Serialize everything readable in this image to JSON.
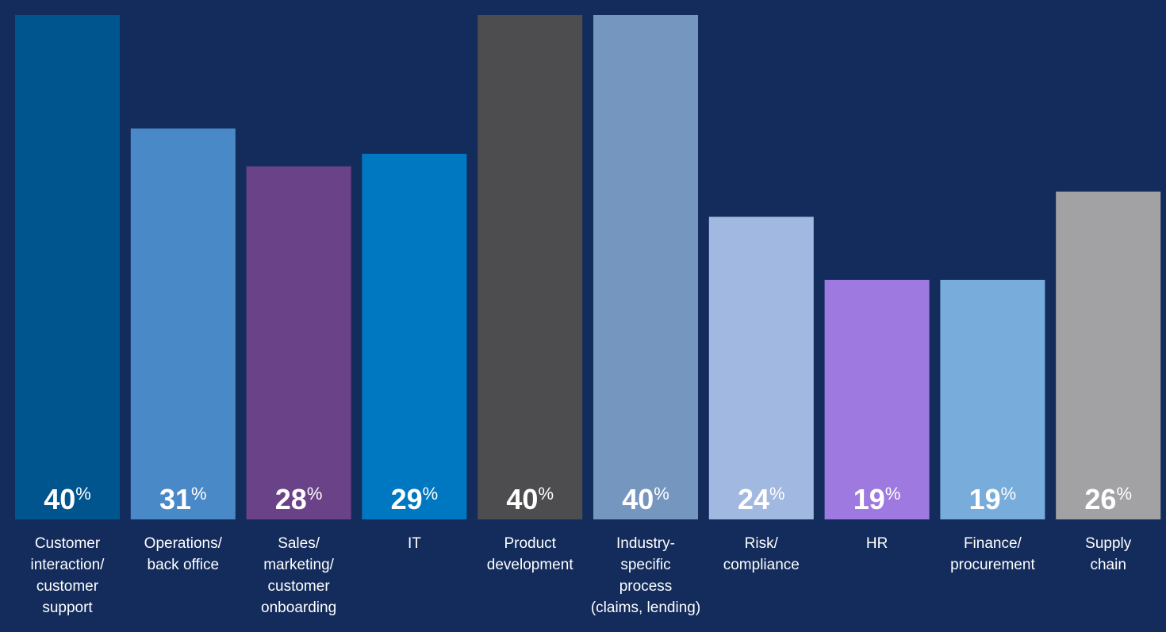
{
  "chart_data": {
    "type": "bar",
    "categories": [
      [
        "Customer",
        "interaction/",
        "customer",
        "support"
      ],
      [
        "Operations/",
        "back office"
      ],
      [
        "Sales/",
        "marketing/",
        "customer",
        "onboarding"
      ],
      [
        "IT"
      ],
      [
        "Product",
        "development"
      ],
      [
        "Industry-",
        "specific",
        "process",
        "(claims, lending)"
      ],
      [
        "Risk/",
        "compliance"
      ],
      [
        "HR"
      ],
      [
        "Finance/",
        "procurement"
      ],
      [
        "Supply",
        "chain"
      ]
    ],
    "values": [
      40,
      31,
      28,
      29,
      40,
      40,
      24,
      19,
      19,
      26
    ],
    "value_suffix": "%",
    "colors": [
      "#00558f",
      "#4a89c7",
      "#6a4288",
      "#0078c1",
      "#4d4d4f",
      "#7596bf",
      "#a1b8e0",
      "#9e7ae0",
      "#78acdb",
      "#a2a2a5"
    ],
    "ylim": [
      0,
      40
    ],
    "grid": false,
    "legend": "none"
  }
}
